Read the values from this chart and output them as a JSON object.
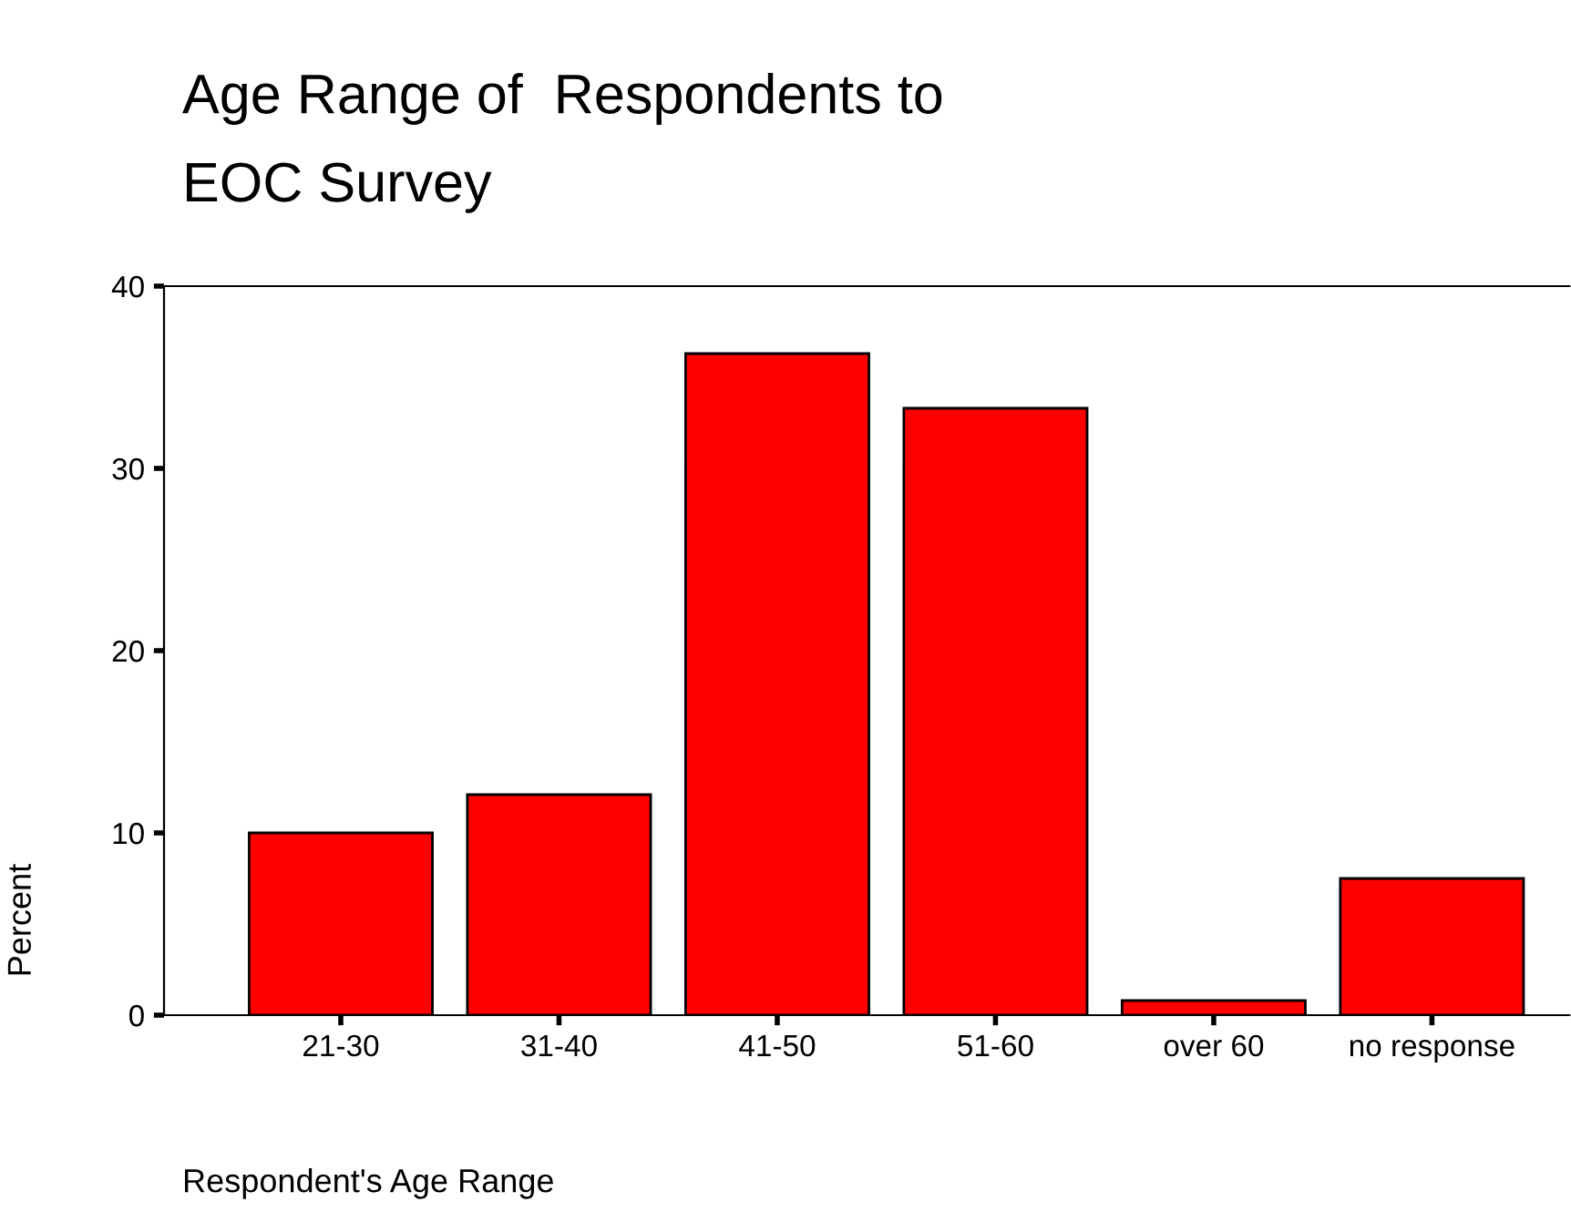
{
  "chart_data": {
    "type": "bar",
    "title": "Age Range of  Respondents to\nEOC Survey",
    "xlabel": "Respondent's Age Range",
    "ylabel": "Percent",
    "categories": [
      "21-30",
      "31-40",
      "41-50",
      "51-60",
      "over 60",
      "no response"
    ],
    "values": [
      10.0,
      12.1,
      36.3,
      33.3,
      0.8,
      7.5
    ],
    "color": "#ff0000",
    "ylim": [
      0,
      40
    ],
    "yticks": [
      0,
      10,
      20,
      30,
      40
    ],
    "grid": false,
    "legend": false
  }
}
